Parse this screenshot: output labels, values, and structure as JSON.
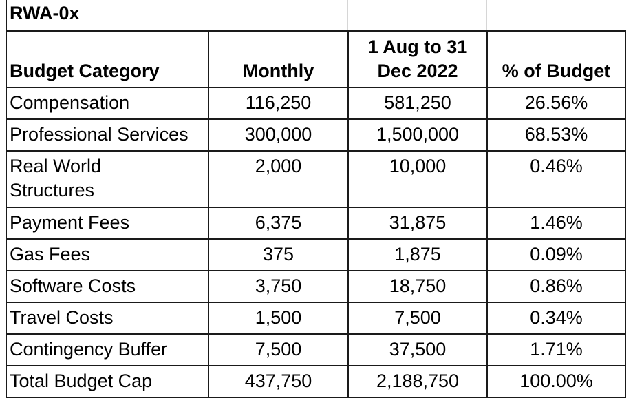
{
  "sheet": {
    "title": "RWA-0x",
    "headers": {
      "category": "Budget Category",
      "monthly": "Monthly",
      "period_line1": "1 Aug to 31",
      "period_line2": "Dec 2022",
      "percent": "% of Budget"
    },
    "rows": [
      {
        "category": "Compensation",
        "monthly": "116,250",
        "period": "581,250",
        "percent": "26.56%"
      },
      {
        "category": "Professional Services",
        "monthly": "300,000",
        "period": "1,500,000",
        "percent": "68.53%"
      },
      {
        "category_line1": "Real World",
        "category_line2": "Structures",
        "monthly": "2,000",
        "period": "10,000",
        "percent": "0.46%"
      },
      {
        "category": "Payment Fees",
        "monthly": "6,375",
        "period": "31,875",
        "percent": "1.46%"
      },
      {
        "category": "Gas Fees",
        "monthly": "375",
        "period": "1,875",
        "percent": "0.09%"
      },
      {
        "category": "Software Costs",
        "monthly": "3,750",
        "period": "18,750",
        "percent": "0.86%"
      },
      {
        "category": "Travel Costs",
        "monthly": "1,500",
        "period": "7,500",
        "percent": "0.34%"
      },
      {
        "category": "Contingency Buffer",
        "monthly": "7,500",
        "period": "37,500",
        "percent": "1.71%"
      },
      {
        "category": "Total Budget Cap",
        "monthly": "437,750",
        "period": "2,188,750",
        "percent": "100.00%"
      }
    ]
  }
}
